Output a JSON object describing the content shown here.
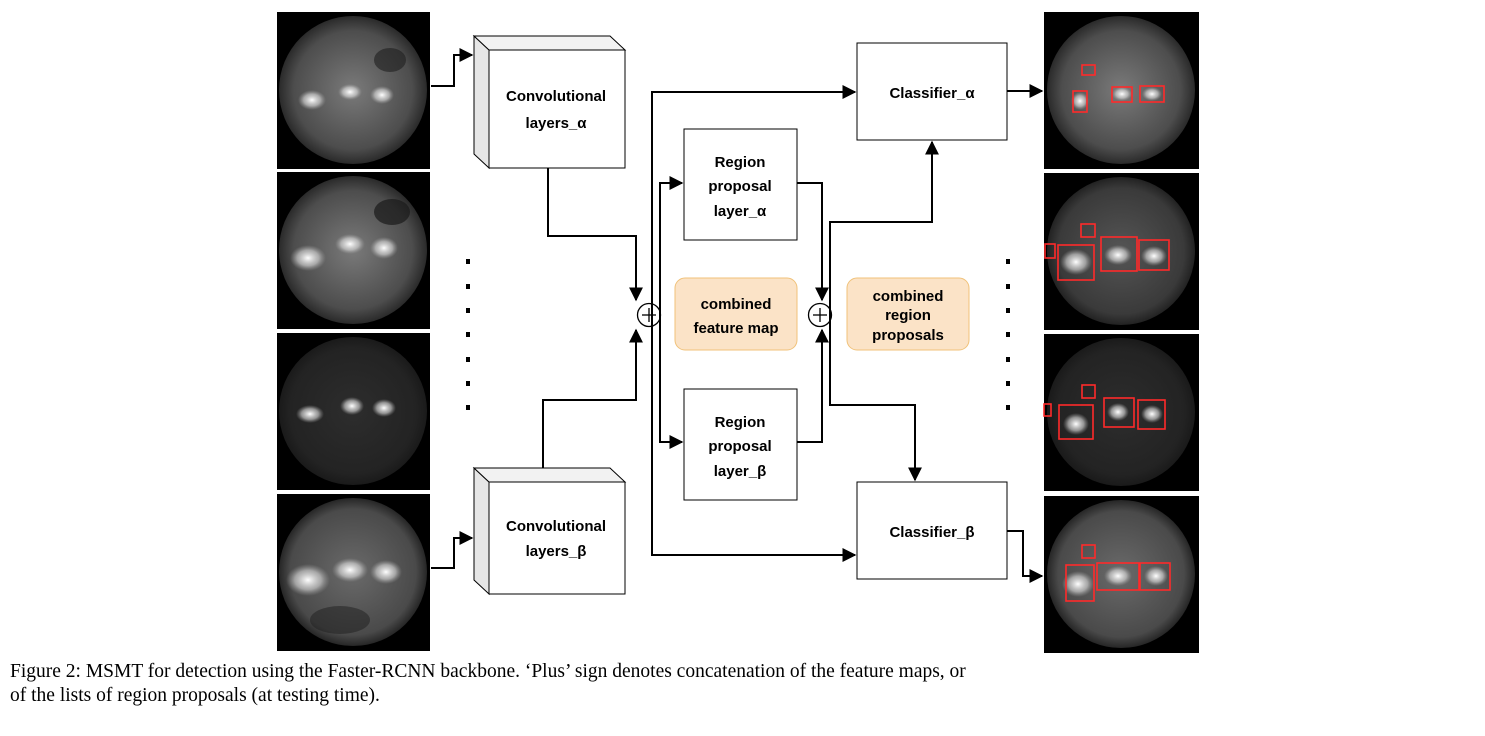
{
  "nodes": {
    "conv_alpha": [
      "Convolutional",
      "layers_α"
    ],
    "conv_beta": [
      "Convolutional",
      "layers_β"
    ],
    "rpn_alpha": [
      "Region",
      "proposal",
      "layer_α"
    ],
    "rpn_beta": [
      "Region",
      "proposal",
      "layer_β"
    ],
    "combined_feature_map": [
      "combined",
      "feature map"
    ],
    "combined_region_proposals": [
      "combined",
      "region",
      "proposals"
    ],
    "classifier_alpha": "Classifier_α",
    "classifier_beta": "Classifier_β"
  },
  "operators": {
    "plus": "+"
  },
  "colors": {
    "box_stroke": "#000000",
    "accent_fill": "#fbe3c7",
    "accent_stroke": "#f0c27a",
    "detection_box": "#ff2a2a",
    "image_bg": "#000000"
  },
  "input_images": [
    "solar-disk-1",
    "solar-disk-2",
    "solar-disk-3",
    "solar-disk-4"
  ],
  "output_images": [
    "solar-disk-detections-1",
    "solar-disk-detections-2",
    "solar-disk-detections-3",
    "solar-disk-detections-4"
  ],
  "caption": {
    "line1": "Figure 2: MSMT for detection using the Faster-RCNN backbone. ‘Plus’ sign denotes concatenation of the feature maps, or",
    "line2": "of the lists of region proposals (at testing time)."
  }
}
